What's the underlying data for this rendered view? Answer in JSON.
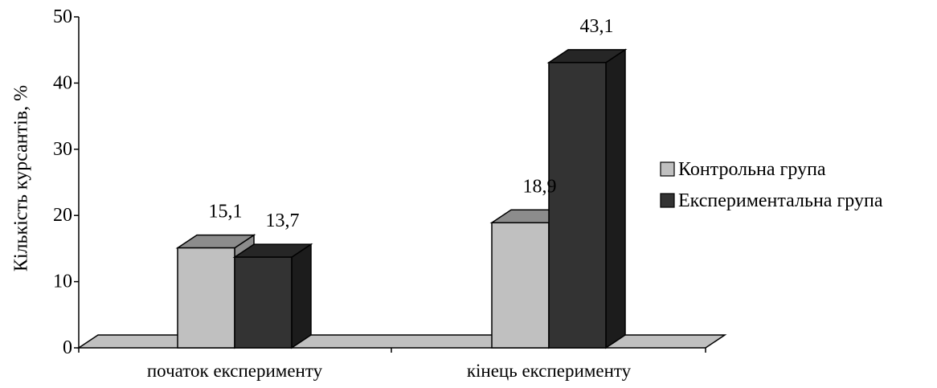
{
  "chart_data": {
    "type": "bar",
    "style": "3d-clustered-column",
    "categories": [
      "початок експерименту",
      "кінець експерименту"
    ],
    "series": [
      {
        "name": "Контрольна група",
        "values": [
          15.1,
          18.9
        ],
        "labels": [
          "15,1",
          "18,9"
        ]
      },
      {
        "name": "Експериментальна група",
        "values": [
          13.7,
          43.1
        ],
        "labels": [
          "13,7",
          "43,1"
        ]
      }
    ],
    "title": "",
    "xlabel": "",
    "ylabel": "Кількість курсантів, %",
    "ylim": [
      0,
      50
    ],
    "yticks": [
      "0",
      "10",
      "20",
      "30",
      "40",
      "50"
    ],
    "grid": false,
    "legend": "right"
  },
  "colors": {
    "series_front": [
      "#c0c0c0",
      "#333333"
    ],
    "series_top": [
      "#8c8c8c",
      "#262626"
    ],
    "series_side": [
      "#8c8c8c",
      "#1c1c1c"
    ],
    "floor": "#c0c0c0"
  }
}
